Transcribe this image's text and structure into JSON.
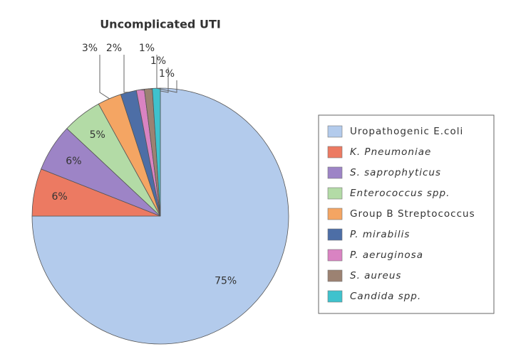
{
  "chart_data": {
    "type": "pie",
    "title": "Uncomplicated UTI",
    "series": [
      {
        "name": "Uropathogenic E.coli",
        "color": "#b3cbec",
        "values": [
          75
        ],
        "value_labels": [
          "75%"
        ]
      },
      {
        "name": "K. Pneumoniae",
        "color": "#ec7a62",
        "values": [
          6
        ],
        "value_labels": [
          "6%"
        ]
      },
      {
        "name": "S. saprophyticus",
        "color": "#9d84c6",
        "values": [
          6
        ],
        "value_labels": [
          "6%"
        ]
      },
      {
        "name": "Enterococcus spp.",
        "color": "#b3dba6",
        "values": [
          5
        ],
        "value_labels": [
          "5%"
        ]
      },
      {
        "name": "Group B Streptococcus",
        "color": "#f4a563",
        "values": [
          3
        ],
        "value_labels": [
          "3%"
        ]
      },
      {
        "name": "P. mirabilis",
        "color": "#4d6ea6",
        "values": [
          2
        ],
        "value_labels": [
          "2%"
        ]
      },
      {
        "name": "P. aeruginosa",
        "color": "#d983c2",
        "values": [
          1
        ],
        "value_labels": [
          "1%"
        ]
      },
      {
        "name": "S. aureus",
        "color": "#9c8272",
        "values": [
          1
        ],
        "value_labels": [
          "1%"
        ]
      },
      {
        "name": "Candida spp.",
        "color": "#3fc2cd",
        "values": [
          1
        ],
        "value_labels": [
          "1%"
        ]
      }
    ]
  }
}
